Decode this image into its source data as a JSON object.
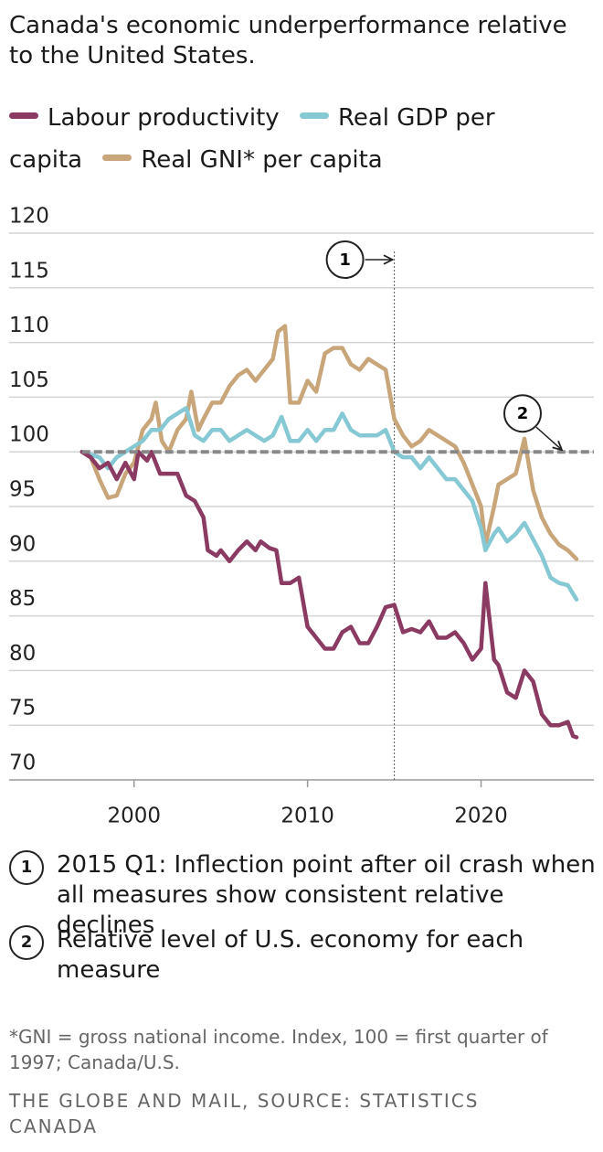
{
  "chart_data": {
    "type": "line",
    "title": "Canada's economic underperformance relative to the United States.",
    "xlim": [
      1992.8,
      2026.5
    ],
    "xticks": [
      2000,
      2010,
      2020
    ],
    "ylim": [
      70,
      120
    ],
    "yticks": [
      70,
      75,
      80,
      85,
      90,
      95,
      100,
      105,
      110,
      115,
      120
    ],
    "grid": true,
    "series": [
      {
        "name": "Real GNI* per capita",
        "color": "#c9a57a",
        "x": [
          1997,
          1997.5,
          1998,
          1998.5,
          1999,
          1999.5,
          2000,
          2000.5,
          2001,
          2001.25,
          2001.6,
          2002,
          2002.5,
          2003,
          2003.3,
          2003.7,
          2004,
          2004.5,
          2005,
          2005.5,
          2006,
          2006.5,
          2007,
          2007.5,
          2008,
          2008.3,
          2008.7,
          2009,
          2009.5,
          2010,
          2010.5,
          2011,
          2011.5,
          2012,
          2012.5,
          2013,
          2013.5,
          2014,
          2014.5,
          2015,
          2015.5,
          2016,
          2016.5,
          2017,
          2017.5,
          2018,
          2018.5,
          2019,
          2019.5,
          2020,
          2020.25,
          2020.75,
          2021,
          2021.5,
          2022,
          2022.5,
          2023,
          2023.5,
          2024,
          2024.5,
          2025,
          2025.5
        ],
        "values": [
          100,
          99.5,
          97.5,
          95.8,
          96,
          98,
          99,
          102,
          103,
          104.5,
          101,
          100,
          102,
          103,
          105.5,
          102,
          103,
          104.5,
          104.5,
          106,
          107,
          107.5,
          106.5,
          107.5,
          108.5,
          111,
          111.5,
          104.5,
          104.5,
          106.5,
          105.5,
          109,
          109.5,
          109.5,
          108,
          107.5,
          108.5,
          108,
          107.5,
          103,
          101.5,
          100.5,
          101,
          102,
          101.5,
          101,
          100.5,
          99,
          97,
          95,
          91.5,
          95,
          97,
          97.5,
          98,
          101.2,
          96.5,
          94,
          92.5,
          91.5,
          91,
          90.2
        ]
      },
      {
        "name": "Real GDP per capita",
        "color": "#86c8d4",
        "x": [
          1997,
          1998,
          1998.5,
          1999,
          1999.5,
          2000,
          2000.5,
          2001,
          2001.5,
          2002,
          2002.5,
          2003,
          2003.5,
          2004,
          2004.5,
          2005,
          2005.5,
          2006,
          2006.5,
          2007,
          2007.5,
          2008,
          2008.5,
          2009,
          2009.5,
          2010,
          2010.5,
          2011,
          2011.5,
          2012,
          2012.5,
          2013,
          2013.5,
          2014,
          2014.5,
          2015,
          2015.5,
          2016,
          2016.5,
          2017,
          2017.5,
          2018,
          2018.5,
          2019,
          2019.5,
          2020,
          2020.25,
          2020.75,
          2021,
          2021.5,
          2022,
          2022.5,
          2023,
          2023.5,
          2024,
          2024.5,
          2025,
          2025.5
        ],
        "values": [
          100,
          99.5,
          98.5,
          99.5,
          100,
          100.5,
          101,
          102,
          102,
          103,
          103.5,
          104,
          101.5,
          101,
          102,
          102,
          101,
          101.5,
          102,
          101.5,
          101,
          101.5,
          103.2,
          101,
          101,
          102,
          101,
          102,
          102,
          103.5,
          102,
          101.5,
          101.5,
          101.5,
          102,
          100,
          99.5,
          99.5,
          98.5,
          99.5,
          98.5,
          97.5,
          97.5,
          96.5,
          95.5,
          93,
          91,
          92.5,
          93,
          91.8,
          92.5,
          93.5,
          92,
          90.5,
          88.5,
          88,
          87.8,
          86.5
        ]
      },
      {
        "name": "Labour productivity",
        "color": "#8b3a62",
        "x": [
          1997,
          1997.5,
          1998,
          1998.5,
          1999,
          1999.5,
          2000,
          2000.25,
          2000.75,
          2001,
          2001.5,
          2002,
          2002.5,
          2003,
          2003.5,
          2004,
          2004.25,
          2004.75,
          2005,
          2005.5,
          2006,
          2006.5,
          2007,
          2007.3,
          2007.8,
          2008.2,
          2008.5,
          2009,
          2009.5,
          2010,
          2010.5,
          2011,
          2011.5,
          2012,
          2012.5,
          2013,
          2013.5,
          2014,
          2014.5,
          2015,
          2015.5,
          2016,
          2016.5,
          2017,
          2017.5,
          2018,
          2018.5,
          2019,
          2019.5,
          2020,
          2020.25,
          2020.75,
          2021,
          2021.5,
          2022,
          2022.5,
          2023,
          2023.5,
          2024,
          2024.5,
          2025,
          2025.3,
          2025.5
        ],
        "values": [
          100,
          99.5,
          98.5,
          99,
          97.5,
          99,
          97.5,
          100,
          99.2,
          100,
          98,
          98,
          98,
          96,
          95.5,
          94,
          91,
          90.5,
          91,
          90,
          91,
          91.8,
          91,
          91.8,
          91.2,
          91,
          88,
          88,
          88.5,
          84,
          83,
          82,
          82,
          83.5,
          84,
          82.5,
          82.5,
          84,
          85.8,
          86,
          83.5,
          83.8,
          83.5,
          84.5,
          83,
          83,
          83.5,
          82.5,
          81,
          82,
          88,
          81,
          80.5,
          78,
          77.5,
          80,
          79,
          76,
          75,
          75,
          75.3,
          74,
          73.9
        ]
      }
    ],
    "legend_order": [
      2,
      1,
      0
    ],
    "annotations": [
      {
        "label": "1",
        "x": 2015,
        "note": "2015 Q1: Inflection point after oil crash when all measures show consistent relative declines"
      },
      {
        "label": "2",
        "y": 100,
        "note": "Relative level of U.S. economy for each measure"
      }
    ],
    "footnote": "*GNI = gross national income. Index, 100 = first quarter of 1997; Canada/U.S.",
    "source": "THE GLOBE AND MAIL, SOURCE: STATISTICS CANADA"
  }
}
